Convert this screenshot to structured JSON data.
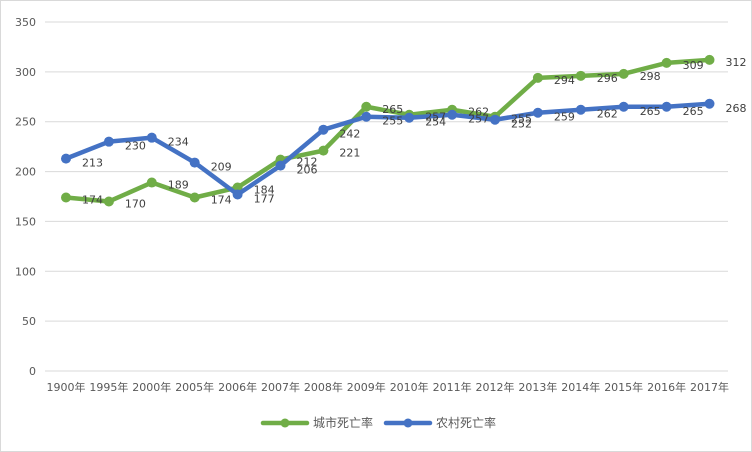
{
  "chart_data": {
    "type": "line",
    "title": "",
    "xlabel": "",
    "ylabel": "",
    "categories": [
      "1900年",
      "1995年",
      "2000年",
      "2005年",
      "2006年",
      "2007年",
      "2008年",
      "2009年",
      "2010年",
      "2011年",
      "2012年",
      "2013年",
      "2014年",
      "2015年",
      "2016年",
      "2017年"
    ],
    "ylim": [
      0,
      350
    ],
    "yticks": [
      0,
      50,
      100,
      150,
      200,
      250,
      300,
      350
    ],
    "grid": "horizontal",
    "legend": "bottom",
    "series": [
      {
        "name": "城市死亡率",
        "color": "#70ad47",
        "values": [
          174,
          170,
          189,
          174,
          184,
          212,
          221,
          265,
          257,
          262,
          255,
          294,
          296,
          298,
          309,
          312
        ]
      },
      {
        "name": "农村死亡率",
        "color": "#4472c4",
        "values": [
          213,
          230,
          234,
          209,
          177,
          206,
          242,
          255,
          254,
          257,
          252,
          259,
          262,
          265,
          265,
          268
        ]
      }
    ]
  }
}
